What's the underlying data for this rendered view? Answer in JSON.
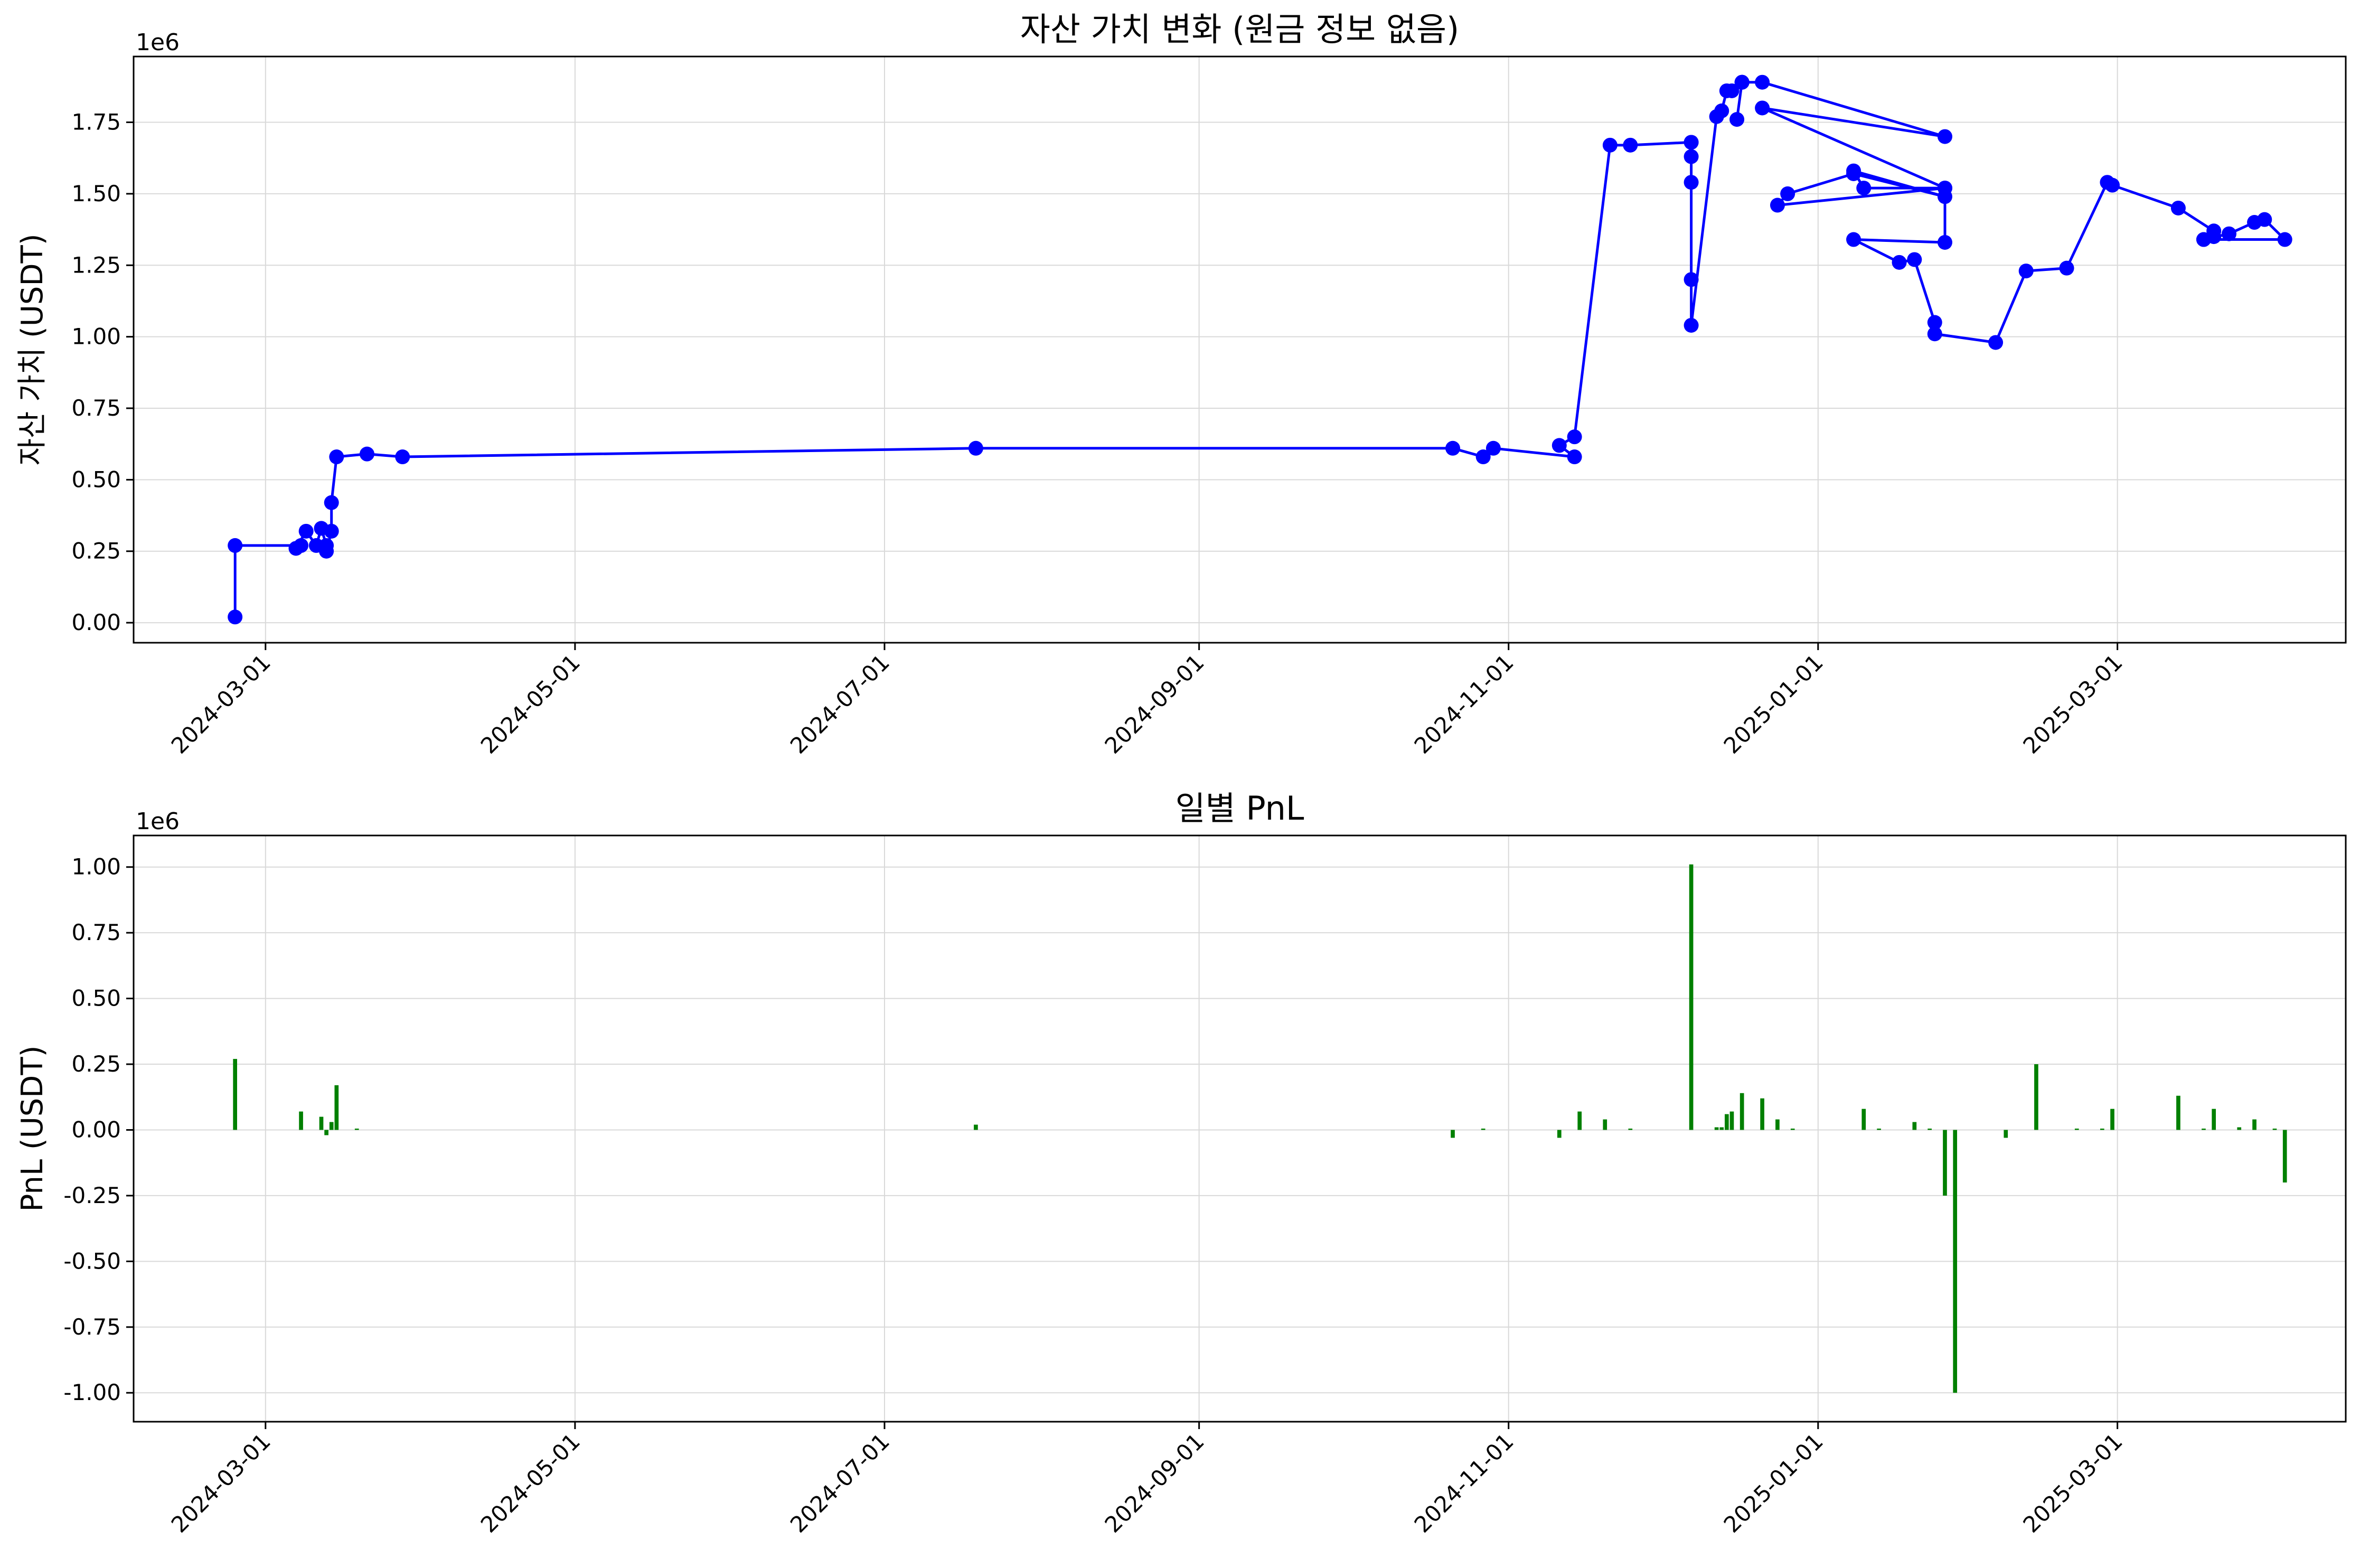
{
  "chart_data": [
    {
      "type": "line",
      "title": "자산 가치 변화 (원금 정보 없음)",
      "xlabel": "",
      "ylabel": "자산 가치 (USDT)",
      "y_offset_label": "1e6",
      "x_tick_labels": [
        "2024-03-01",
        "2024-05-01",
        "2024-07-01",
        "2024-09-01",
        "2024-11-01",
        "2025-01-01",
        "2025-03-01"
      ],
      "y_tick_labels": [
        "0.00",
        "0.25",
        "0.50",
        "0.75",
        "1.00",
        "1.25",
        "1.50",
        "1.75"
      ],
      "y_ticks": [
        0,
        0.25,
        0.5,
        0.75,
        1.0,
        1.25,
        1.5,
        1.75
      ],
      "xlim": [
        "2024-02-04",
        "2025-04-15"
      ],
      "ylim": [
        -0.07,
        1.98
      ],
      "grid": true,
      "color": "#0000ff",
      "marker": "circle",
      "series": [
        {
          "x": [
            "2024-02-24",
            "2024-02-24",
            "2024-03-08",
            "2024-03-07",
            "2024-03-09",
            "2024-03-11",
            "2024-03-12",
            "2024-03-13",
            "2024-03-13",
            "2024-03-14",
            "2024-03-14",
            "2024-03-15",
            "2024-03-21",
            "2024-03-28",
            "2024-07-19",
            "2024-10-21",
            "2024-10-27",
            "2024-10-29",
            "2024-11-14",
            "2024-11-11",
            "2024-11-14",
            "2024-11-21",
            "2024-11-25",
            "2024-12-07",
            "2024-12-07",
            "2024-12-07",
            "2024-12-07",
            "2024-12-07",
            "2024-12-07",
            "2024-12-12",
            "2024-12-13",
            "2024-12-14",
            "2024-12-15",
            "2024-12-17",
            "2024-12-17",
            "2024-12-16",
            "2024-12-17",
            "2024-12-21",
            "2025-01-26",
            "2024-12-21",
            "2025-01-26",
            "2024-12-24",
            "2024-12-26",
            "2025-01-08",
            "2025-01-26",
            "2025-01-08",
            "2025-01-10",
            "2025-01-26",
            "2025-01-26",
            "2025-01-08",
            "2025-01-17",
            "2025-01-20",
            "2025-01-24",
            "2025-01-24",
            "2025-02-05",
            "2025-02-11",
            "2025-02-19",
            "2025-02-27",
            "2025-02-28",
            "2025-03-13",
            "2025-03-20",
            "2025-03-20",
            "2025-03-18",
            "2025-03-23",
            "2025-03-28",
            "2025-03-30",
            "2025-04-03",
            "2025-03-18"
          ],
          "y": [
            0.02,
            0.27,
            0.27,
            0.26,
            0.32,
            0.27,
            0.33,
            0.27,
            0.25,
            0.32,
            0.42,
            0.58,
            0.59,
            0.58,
            0.61,
            0.61,
            0.58,
            0.61,
            0.58,
            0.62,
            0.65,
            1.67,
            1.67,
            1.68,
            1.68,
            1.63,
            1.54,
            1.2,
            1.04,
            1.77,
            1.79,
            1.86,
            1.86,
            1.89,
            1.89,
            1.76,
            1.89,
            1.89,
            1.7,
            1.8,
            1.52,
            1.46,
            1.5,
            1.57,
            1.49,
            1.58,
            1.52,
            1.52,
            1.33,
            1.34,
            1.26,
            1.27,
            1.05,
            1.01,
            0.98,
            1.23,
            1.24,
            1.54,
            1.53,
            1.45,
            1.37,
            1.35,
            1.34,
            1.36,
            1.4,
            1.41,
            1.34,
            1.34
          ]
        }
      ]
    },
    {
      "type": "bar",
      "title": "일별 PnL",
      "xlabel": "",
      "ylabel": "PnL (USDT)",
      "y_offset_label": "1e6",
      "x_tick_labels": [
        "2024-03-01",
        "2024-05-01",
        "2024-07-01",
        "2024-09-01",
        "2024-11-01",
        "2025-01-01",
        "2025-03-01"
      ],
      "y_tick_labels": [
        "-1.00",
        "-0.75",
        "-0.50",
        "-0.25",
        "0.00",
        "0.25",
        "0.50",
        "0.75",
        "1.00"
      ],
      "y_ticks": [
        -1.0,
        -0.75,
        -0.5,
        -0.25,
        0,
        0.25,
        0.5,
        0.75,
        1.0
      ],
      "xlim": [
        "2024-02-04",
        "2025-04-15"
      ],
      "ylim": [
        -1.11,
        1.12
      ],
      "grid": true,
      "color": "#008000",
      "series": [
        {
          "x": [
            "2024-02-24",
            "2024-03-08",
            "2024-03-12",
            "2024-03-13",
            "2024-03-14",
            "2024-03-15",
            "2024-03-19",
            "2024-07-19",
            "2024-10-21",
            "2024-10-27",
            "2024-11-11",
            "2024-11-15",
            "2024-11-20",
            "2024-11-25",
            "2024-12-07",
            "2024-12-12",
            "2024-12-13",
            "2024-12-14",
            "2024-12-15",
            "2024-12-17",
            "2024-12-21",
            "2024-12-24",
            "2024-12-27",
            "2025-01-10",
            "2025-01-13",
            "2025-01-20",
            "2025-01-23",
            "2025-01-26",
            "2025-01-28",
            "2025-02-07",
            "2025-02-13",
            "2025-02-21",
            "2025-02-26",
            "2025-02-28",
            "2025-03-13",
            "2025-03-18",
            "2025-03-20",
            "2025-03-25",
            "2025-03-28",
            "2025-04-01",
            "2025-04-03"
          ],
          "y": [
            0.27,
            0.07,
            0.05,
            -0.02,
            0.03,
            0.17,
            0.005,
            0.02,
            -0.03,
            0.005,
            -0.03,
            0.07,
            0.04,
            0.005,
            1.01,
            0.01,
            0.01,
            0.06,
            0.07,
            0.14,
            0.12,
            0.04,
            0.005,
            0.08,
            0.005,
            0.03,
            0.005,
            -0.25,
            -1.0,
            -0.03,
            0.25,
            0.005,
            0.005,
            0.08,
            0.13,
            0.005,
            0.08,
            0.01,
            0.04,
            0.005,
            -0.2
          ]
        }
      ]
    }
  ]
}
